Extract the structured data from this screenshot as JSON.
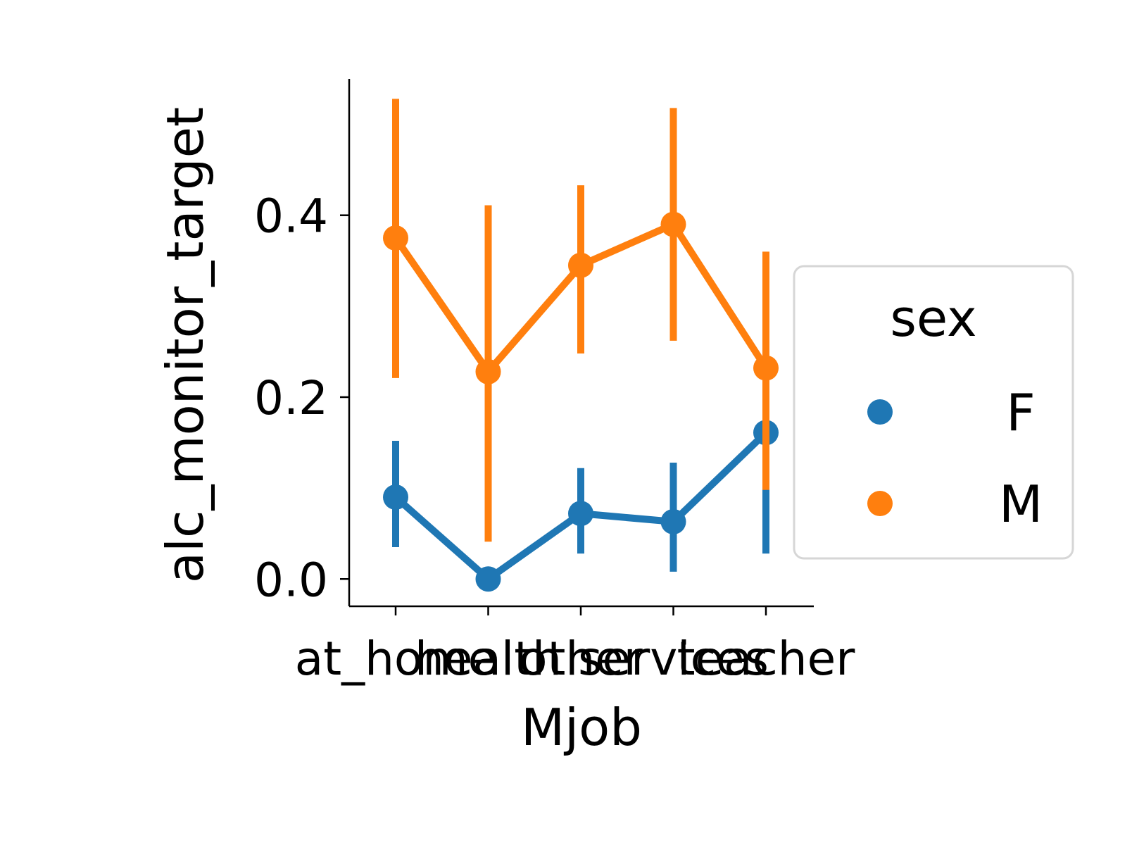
{
  "chart_data": {
    "type": "line",
    "categories": [
      "at_home",
      "health",
      "other",
      "services",
      "teacher"
    ],
    "xlabel": "Mjob",
    "ylabel": "alc_monitor_target",
    "ylim": [
      -0.03,
      0.55
    ],
    "yticks": [
      0.0,
      0.2,
      0.4
    ],
    "grid": false,
    "legend": {
      "title": "sex",
      "placement": "right"
    },
    "series": [
      {
        "name": "F",
        "color": "#1f77b4",
        "values": [
          0.09,
          0.0,
          0.072,
          0.063,
          0.161
        ],
        "ci_low": [
          0.035,
          0.0,
          0.028,
          0.008,
          0.028
        ],
        "ci_high": [
          0.152,
          0.0,
          0.122,
          0.128,
          0.292
        ]
      },
      {
        "name": "M",
        "color": "#ff7f0e",
        "values": [
          0.375,
          0.228,
          0.345,
          0.39,
          0.232
        ],
        "ci_low": [
          0.221,
          0.041,
          0.248,
          0.262,
          0.098
        ],
        "ci_high": [
          0.528,
          0.411,
          0.433,
          0.518,
          0.36
        ]
      }
    ]
  }
}
